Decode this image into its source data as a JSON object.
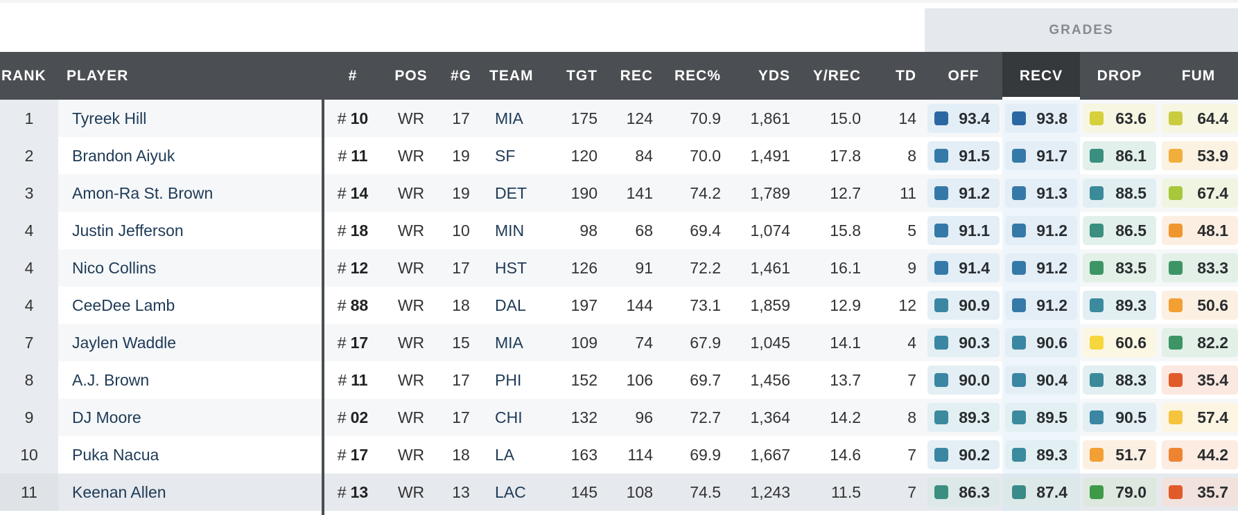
{
  "grades_header": "GRADES",
  "columns": {
    "rank": "RANK",
    "player": "PLAYER",
    "number": "#",
    "pos": "POS",
    "games": "#G",
    "team": "TEAM",
    "tgt": "TGT",
    "rec": "REC",
    "rec_pct": "REC%",
    "yds": "YDS",
    "y_rec": "Y/REC",
    "td": "TD",
    "off": "OFF",
    "recv": "RECV",
    "drop": "DROP",
    "fum": "FUM"
  },
  "active_sort_column": "RECV",
  "colors": {
    "header_bg": "#4b4f53",
    "active_header_bg": "#36393c",
    "grade_blue": "#2f6fa8",
    "grade_teal": "#3b8a9e",
    "grade_green": "#3f9a6a",
    "grade_yellow": "#d8d23a",
    "grade_orange": "#f0a030",
    "grade_red": "#e05a2a"
  },
  "rows": [
    {
      "rank": "1",
      "player": "Tyreek Hill",
      "hash": "#",
      "num": "10",
      "pos": "WR",
      "games": "17",
      "team": "MIA",
      "tgt": "175",
      "rec": "124",
      "rec_pct": "70.9",
      "yds": "1,861",
      "y_rec": "15.0",
      "td": "14",
      "off": {
        "value": "93.4",
        "color": "#2b68a3",
        "bg": "#e3eef7"
      },
      "recv": {
        "value": "93.8",
        "color": "#2b68a3",
        "bg": "#e3eef7"
      },
      "drop": {
        "value": "63.6",
        "color": "#d6d03a",
        "bg": "#f7f6e2"
      },
      "fum": {
        "value": "64.4",
        "color": "#c9cc3f",
        "bg": "#f6f6e2"
      }
    },
    {
      "rank": "2",
      "player": "Brandon Aiyuk",
      "hash": "#",
      "num": "11",
      "pos": "WR",
      "games": "19",
      "team": "SF",
      "tgt": "120",
      "rec": "84",
      "rec_pct": "70.0",
      "yds": "1,491",
      "y_rec": "17.8",
      "td": "8",
      "off": {
        "value": "91.5",
        "color": "#3579a8",
        "bg": "#e3eef6"
      },
      "recv": {
        "value": "91.7",
        "color": "#3579a8",
        "bg": "#e3eef6"
      },
      "drop": {
        "value": "86.1",
        "color": "#3a8f7f",
        "bg": "#e2f0ec"
      },
      "fum": {
        "value": "53.9",
        "color": "#f2ae3a",
        "bg": "#fcf2e2"
      }
    },
    {
      "rank": "3",
      "player": "Amon-Ra St. Brown",
      "hash": "#",
      "num": "14",
      "pos": "WR",
      "games": "19",
      "team": "DET",
      "tgt": "190",
      "rec": "141",
      "rec_pct": "74.2",
      "yds": "1,789",
      "y_rec": "12.7",
      "td": "11",
      "off": {
        "value": "91.2",
        "color": "#3579a8",
        "bg": "#e3eef6"
      },
      "recv": {
        "value": "91.3",
        "color": "#3579a8",
        "bg": "#e3eef6"
      },
      "drop": {
        "value": "88.5",
        "color": "#3b8a9a",
        "bg": "#e2eff2"
      },
      "fum": {
        "value": "67.4",
        "color": "#a7c83b",
        "bg": "#eff5e0"
      }
    },
    {
      "rank": "4",
      "player": "Justin Jefferson",
      "hash": "#",
      "num": "18",
      "pos": "WR",
      "games": "10",
      "team": "MIN",
      "tgt": "98",
      "rec": "68",
      "rec_pct": "69.4",
      "yds": "1,074",
      "y_rec": "15.8",
      "td": "5",
      "off": {
        "value": "91.1",
        "color": "#3579a8",
        "bg": "#e3eef6"
      },
      "recv": {
        "value": "91.2",
        "color": "#3579a8",
        "bg": "#e3eef6"
      },
      "drop": {
        "value": "86.5",
        "color": "#3a8f7f",
        "bg": "#e2f0ec"
      },
      "fum": {
        "value": "48.1",
        "color": "#f0962e",
        "bg": "#fcefe2"
      }
    },
    {
      "rank": "4",
      "player": "Nico Collins",
      "hash": "#",
      "num": "12",
      "pos": "WR",
      "games": "17",
      "team": "HST",
      "tgt": "126",
      "rec": "91",
      "rec_pct": "72.2",
      "yds": "1,461",
      "y_rec": "16.1",
      "td": "9",
      "off": {
        "value": "91.4",
        "color": "#3579a8",
        "bg": "#e3eef6"
      },
      "recv": {
        "value": "91.2",
        "color": "#3579a8",
        "bg": "#e3eef6"
      },
      "drop": {
        "value": "83.5",
        "color": "#3d9566",
        "bg": "#e2f0e7"
      },
      "fum": {
        "value": "83.3",
        "color": "#3d9566",
        "bg": "#e2f0e7"
      }
    },
    {
      "rank": "4",
      "player": "CeeDee Lamb",
      "hash": "#",
      "num": "88",
      "pos": "WR",
      "games": "18",
      "team": "DAL",
      "tgt": "197",
      "rec": "144",
      "rec_pct": "73.1",
      "yds": "1,859",
      "y_rec": "12.9",
      "td": "12",
      "off": {
        "value": "90.9",
        "color": "#3a86a3",
        "bg": "#e3eff4"
      },
      "recv": {
        "value": "91.2",
        "color": "#3579a8",
        "bg": "#e3eef6"
      },
      "drop": {
        "value": "89.3",
        "color": "#3b8a9e",
        "bg": "#e2eff3"
      },
      "fum": {
        "value": "50.6",
        "color": "#f2a034",
        "bg": "#fcf0e2"
      }
    },
    {
      "rank": "7",
      "player": "Jaylen Waddle",
      "hash": "#",
      "num": "17",
      "pos": "WR",
      "games": "15",
      "team": "MIA",
      "tgt": "109",
      "rec": "74",
      "rec_pct": "67.9",
      "yds": "1,045",
      "y_rec": "14.1",
      "td": "4",
      "off": {
        "value": "90.3",
        "color": "#3a86a3",
        "bg": "#e3eff4"
      },
      "recv": {
        "value": "90.6",
        "color": "#3a86a3",
        "bg": "#e3eff4"
      },
      "drop": {
        "value": "60.6",
        "color": "#f5d63c",
        "bg": "#fcf7e2"
      },
      "fum": {
        "value": "82.2",
        "color": "#3d9566",
        "bg": "#e2f0e7"
      }
    },
    {
      "rank": "8",
      "player": "A.J. Brown",
      "hash": "#",
      "num": "11",
      "pos": "WR",
      "games": "17",
      "team": "PHI",
      "tgt": "152",
      "rec": "106",
      "rec_pct": "69.7",
      "yds": "1,456",
      "y_rec": "13.7",
      "td": "7",
      "off": {
        "value": "90.0",
        "color": "#3a86a3",
        "bg": "#e3eff4"
      },
      "recv": {
        "value": "90.4",
        "color": "#3a86a3",
        "bg": "#e3eff4"
      },
      "drop": {
        "value": "88.3",
        "color": "#3b8a9a",
        "bg": "#e2eff2"
      },
      "fum": {
        "value": "35.4",
        "color": "#e05a2a",
        "bg": "#fbe8e0"
      }
    },
    {
      "rank": "9",
      "player": "DJ Moore",
      "hash": "#",
      "num": "02",
      "pos": "WR",
      "games": "17",
      "team": "CHI",
      "tgt": "132",
      "rec": "96",
      "rec_pct": "72.7",
      "yds": "1,364",
      "y_rec": "14.2",
      "td": "8",
      "off": {
        "value": "89.3",
        "color": "#3b8a9e",
        "bg": "#e2eff3"
      },
      "recv": {
        "value": "89.5",
        "color": "#3b8a9e",
        "bg": "#e2eff3"
      },
      "drop": {
        "value": "90.5",
        "color": "#3a86a3",
        "bg": "#e3eff4"
      },
      "fum": {
        "value": "57.4",
        "color": "#f5c43c",
        "bg": "#fcf5e2"
      }
    },
    {
      "rank": "10",
      "player": "Puka Nacua",
      "hash": "#",
      "num": "17",
      "pos": "WR",
      "games": "18",
      "team": "LA",
      "tgt": "163",
      "rec": "114",
      "rec_pct": "69.9",
      "yds": "1,667",
      "y_rec": "14.6",
      "td": "7",
      "off": {
        "value": "90.2",
        "color": "#3a86a3",
        "bg": "#e3eff4"
      },
      "recv": {
        "value": "89.3",
        "color": "#3b8a9e",
        "bg": "#e2eff3"
      },
      "drop": {
        "value": "51.7",
        "color": "#f2a034",
        "bg": "#fcf0e2"
      },
      "fum": {
        "value": "44.2",
        "color": "#ee8430",
        "bg": "#fcece2"
      }
    },
    {
      "rank": "11",
      "player": "Keenan Allen",
      "hash": "#",
      "num": "13",
      "pos": "WR",
      "games": "13",
      "team": "LAC",
      "tgt": "145",
      "rec": "108",
      "rec_pct": "74.5",
      "yds": "1,243",
      "y_rec": "11.5",
      "td": "7",
      "off": {
        "value": "86.3",
        "color": "#3a8f7f",
        "bg": "#dde9e8"
      },
      "recv": {
        "value": "87.4",
        "color": "#3b8a8a",
        "bg": "#dde9e8"
      },
      "drop": {
        "value": "79.0",
        "color": "#3d9a48",
        "bg": "#dde9df"
      },
      "fum": {
        "value": "35.7",
        "color": "#e05a2a",
        "bg": "#f1e2dd"
      }
    }
  ]
}
